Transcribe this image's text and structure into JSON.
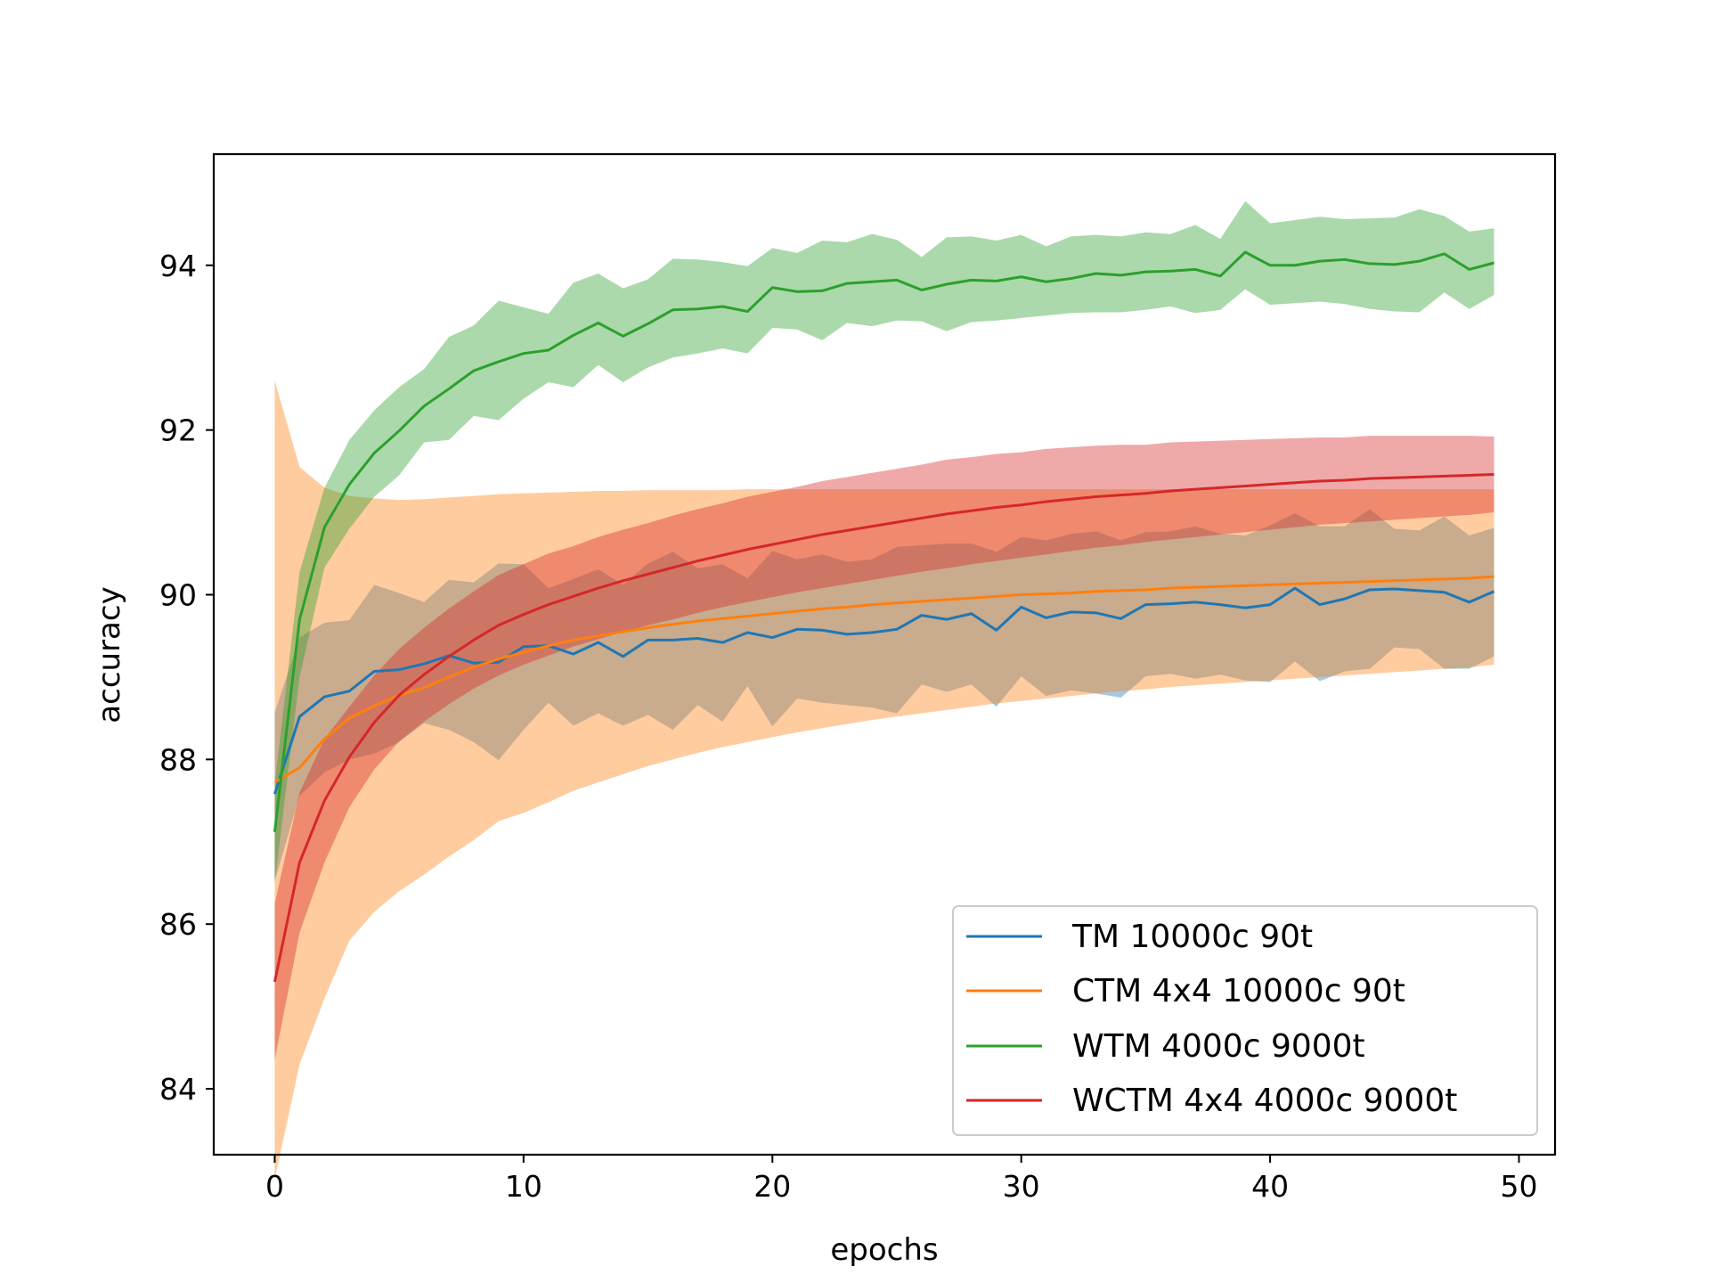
{
  "chart_data": {
    "type": "line",
    "title": "",
    "xlabel": "epochs",
    "ylabel": "accuracy",
    "xlim": [
      -2.45,
      51.45
    ],
    "ylim": [
      83.2,
      95.35
    ],
    "xticks": [
      0,
      10,
      20,
      30,
      40,
      50
    ],
    "yticks": [
      84,
      86,
      88,
      90,
      92,
      94
    ],
    "grid": false,
    "legend_position": "lower-right",
    "x": [
      0,
      1,
      2,
      3,
      4,
      5,
      6,
      7,
      8,
      9,
      10,
      11,
      12,
      13,
      14,
      15,
      16,
      17,
      18,
      19,
      20,
      21,
      22,
      23,
      24,
      25,
      26,
      27,
      28,
      29,
      30,
      31,
      32,
      33,
      34,
      35,
      36,
      37,
      38,
      39,
      40,
      41,
      42,
      43,
      44,
      45,
      46,
      47,
      48,
      49
    ],
    "series": [
      {
        "name": "TM 10000c 90t",
        "color": "#1f77b4",
        "values": [
          87.58,
          88.52,
          88.76,
          88.83,
          89.07,
          89.09,
          89.16,
          89.26,
          89.17,
          89.18,
          89.37,
          89.38,
          89.28,
          89.42,
          89.25,
          89.45,
          89.45,
          89.47,
          89.42,
          89.54,
          89.48,
          89.58,
          89.57,
          89.52,
          89.54,
          89.58,
          89.75,
          89.7,
          89.77,
          89.57,
          89.85,
          89.72,
          89.79,
          89.78,
          89.71,
          89.88,
          89.89,
          89.91,
          89.88,
          89.84,
          89.88,
          90.08,
          89.88,
          89.95,
          90.06,
          90.07,
          90.05,
          90.03,
          89.91,
          90.04
        ],
        "lower": [
          86.52,
          87.56,
          87.84,
          88.0,
          88.07,
          88.21,
          88.44,
          88.36,
          88.21,
          87.99,
          88.36,
          88.69,
          88.41,
          88.56,
          88.41,
          88.54,
          88.36,
          88.66,
          88.46,
          88.89,
          88.4,
          88.74,
          88.69,
          88.66,
          88.63,
          88.56,
          88.91,
          88.82,
          88.91,
          88.64,
          89.01,
          88.77,
          88.84,
          88.8,
          88.75,
          89.01,
          89.04,
          88.98,
          89.03,
          88.96,
          88.94,
          89.19,
          88.95,
          89.07,
          89.1,
          89.36,
          89.34,
          89.1,
          89.1,
          89.25
        ],
        "upper": [
          88.57,
          89.48,
          89.66,
          89.69,
          90.12,
          90.02,
          89.91,
          90.18,
          90.15,
          90.38,
          90.37,
          90.08,
          90.19,
          90.31,
          90.12,
          90.38,
          90.52,
          90.32,
          90.37,
          90.2,
          90.53,
          90.43,
          90.49,
          90.4,
          90.43,
          90.58,
          90.6,
          90.62,
          90.62,
          90.52,
          90.7,
          90.66,
          90.74,
          90.77,
          90.66,
          90.76,
          90.77,
          90.83,
          90.74,
          90.72,
          90.84,
          90.99,
          90.83,
          90.83,
          91.04,
          90.8,
          90.78,
          90.95,
          90.72,
          90.81
        ]
      },
      {
        "name": "CTM 4x4 10000c 90t",
        "color": "#ff7f0e",
        "values": [
          87.72,
          87.9,
          88.25,
          88.5,
          88.65,
          88.78,
          88.87,
          89.0,
          89.12,
          89.22,
          89.3,
          89.38,
          89.45,
          89.5,
          89.55,
          89.6,
          89.64,
          89.68,
          89.71,
          89.74,
          89.77,
          89.8,
          89.83,
          89.85,
          89.88,
          89.9,
          89.92,
          89.94,
          89.96,
          89.98,
          90.0,
          90.01,
          90.02,
          90.04,
          90.05,
          90.06,
          90.08,
          90.09,
          90.1,
          90.11,
          90.12,
          90.13,
          90.14,
          90.15,
          90.16,
          90.17,
          90.18,
          90.19,
          90.2,
          90.22
        ],
        "lower": [
          82.9,
          84.3,
          85.1,
          85.8,
          86.15,
          86.4,
          86.6,
          86.82,
          87.02,
          87.25,
          87.35,
          87.48,
          87.62,
          87.72,
          87.82,
          87.92,
          88.0,
          88.08,
          88.15,
          88.21,
          88.27,
          88.33,
          88.38,
          88.43,
          88.48,
          88.52,
          88.56,
          88.6,
          88.64,
          88.68,
          88.71,
          88.74,
          88.77,
          88.8,
          88.83,
          88.85,
          88.88,
          88.9,
          88.92,
          88.94,
          88.96,
          88.98,
          89.0,
          89.02,
          89.04,
          89.06,
          89.08,
          89.1,
          89.12,
          89.15
        ],
        "upper": [
          92.6,
          91.55,
          91.3,
          91.2,
          91.17,
          91.15,
          91.16,
          91.18,
          91.2,
          91.22,
          91.23,
          91.24,
          91.25,
          91.26,
          91.26,
          91.27,
          91.27,
          91.27,
          91.27,
          91.28,
          91.28,
          91.28,
          91.28,
          91.28,
          91.28,
          91.28,
          91.28,
          91.28,
          91.28,
          91.28,
          91.28,
          91.28,
          91.28,
          91.28,
          91.28,
          91.28,
          91.28,
          91.28,
          91.28,
          91.28,
          91.28,
          91.28,
          91.28,
          91.28,
          91.28,
          91.28,
          91.28,
          91.28,
          91.28,
          91.28
        ]
      },
      {
        "name": "WTM 4000c 9000t",
        "color": "#2ca02c",
        "values": [
          87.12,
          89.7,
          90.82,
          91.34,
          91.72,
          91.99,
          92.29,
          92.5,
          92.72,
          92.83,
          92.93,
          92.97,
          93.15,
          93.3,
          93.14,
          93.29,
          93.46,
          93.47,
          93.5,
          93.44,
          93.73,
          93.68,
          93.69,
          93.78,
          93.8,
          93.82,
          93.7,
          93.77,
          93.82,
          93.81,
          93.86,
          93.8,
          93.84,
          93.9,
          93.88,
          93.92,
          93.93,
          93.95,
          93.87,
          94.16,
          94.0,
          94.0,
          94.05,
          94.07,
          94.02,
          94.01,
          94.05,
          94.14,
          93.95,
          94.03
        ],
        "lower": [
          86.5,
          89.0,
          90.33,
          90.8,
          91.19,
          91.45,
          91.85,
          91.88,
          92.17,
          92.12,
          92.38,
          92.58,
          92.52,
          92.79,
          92.58,
          92.76,
          92.88,
          92.93,
          92.99,
          92.93,
          93.24,
          93.22,
          93.09,
          93.3,
          93.26,
          93.33,
          93.32,
          93.2,
          93.31,
          93.33,
          93.36,
          93.39,
          93.42,
          93.43,
          93.43,
          93.46,
          93.5,
          93.42,
          93.46,
          93.71,
          93.52,
          93.54,
          93.56,
          93.53,
          93.47,
          93.44,
          93.43,
          93.67,
          93.47,
          93.64
        ],
        "upper": [
          87.7,
          90.28,
          91.3,
          91.88,
          92.24,
          92.52,
          92.74,
          93.13,
          93.27,
          93.57,
          93.49,
          93.41,
          93.79,
          93.9,
          93.72,
          93.83,
          94.08,
          94.07,
          94.04,
          93.99,
          94.21,
          94.15,
          94.3,
          94.28,
          94.38,
          94.31,
          94.1,
          94.34,
          94.35,
          94.3,
          94.37,
          94.23,
          94.35,
          94.37,
          94.35,
          94.4,
          94.38,
          94.49,
          94.32,
          94.78,
          94.51,
          94.55,
          94.59,
          94.56,
          94.57,
          94.58,
          94.68,
          94.6,
          94.41,
          94.45
        ]
      },
      {
        "name": "WCTM 4x4 4000c 9000t",
        "color": "#d62728",
        "values": [
          85.3,
          86.75,
          87.5,
          88.03,
          88.45,
          88.78,
          89.03,
          89.25,
          89.45,
          89.63,
          89.76,
          89.88,
          89.98,
          90.08,
          90.17,
          90.25,
          90.33,
          90.41,
          90.48,
          90.55,
          90.61,
          90.67,
          90.73,
          90.78,
          90.83,
          90.88,
          90.93,
          90.98,
          91.02,
          91.06,
          91.09,
          91.13,
          91.16,
          91.19,
          91.21,
          91.23,
          91.26,
          91.28,
          91.3,
          91.32,
          91.34,
          91.36,
          91.38,
          91.39,
          91.41,
          91.42,
          91.43,
          91.44,
          91.45,
          91.46
        ],
        "lower": [
          84.35,
          85.9,
          86.75,
          87.42,
          87.88,
          88.22,
          88.46,
          88.67,
          88.86,
          89.02,
          89.15,
          89.26,
          89.37,
          89.46,
          89.55,
          89.63,
          89.7,
          89.78,
          89.85,
          89.91,
          89.97,
          90.03,
          90.08,
          90.13,
          90.18,
          90.23,
          90.28,
          90.32,
          90.37,
          90.41,
          90.45,
          90.49,
          90.53,
          90.57,
          90.6,
          90.64,
          90.67,
          90.7,
          90.73,
          90.76,
          90.79,
          90.82,
          90.85,
          90.87,
          90.89,
          90.91,
          90.93,
          90.95,
          90.97,
          91.0
        ],
        "upper": [
          86.25,
          87.6,
          88.25,
          88.64,
          89.02,
          89.34,
          89.6,
          89.83,
          90.04,
          90.24,
          90.37,
          90.5,
          90.59,
          90.7,
          90.79,
          90.87,
          90.96,
          91.04,
          91.11,
          91.19,
          91.25,
          91.31,
          91.38,
          91.43,
          91.48,
          91.53,
          91.58,
          91.64,
          91.67,
          91.71,
          91.73,
          91.77,
          91.79,
          91.81,
          91.82,
          91.82,
          91.85,
          91.86,
          91.87,
          91.88,
          91.89,
          91.9,
          91.91,
          91.91,
          91.93,
          91.93,
          91.93,
          91.93,
          91.93,
          91.92
        ]
      }
    ]
  }
}
